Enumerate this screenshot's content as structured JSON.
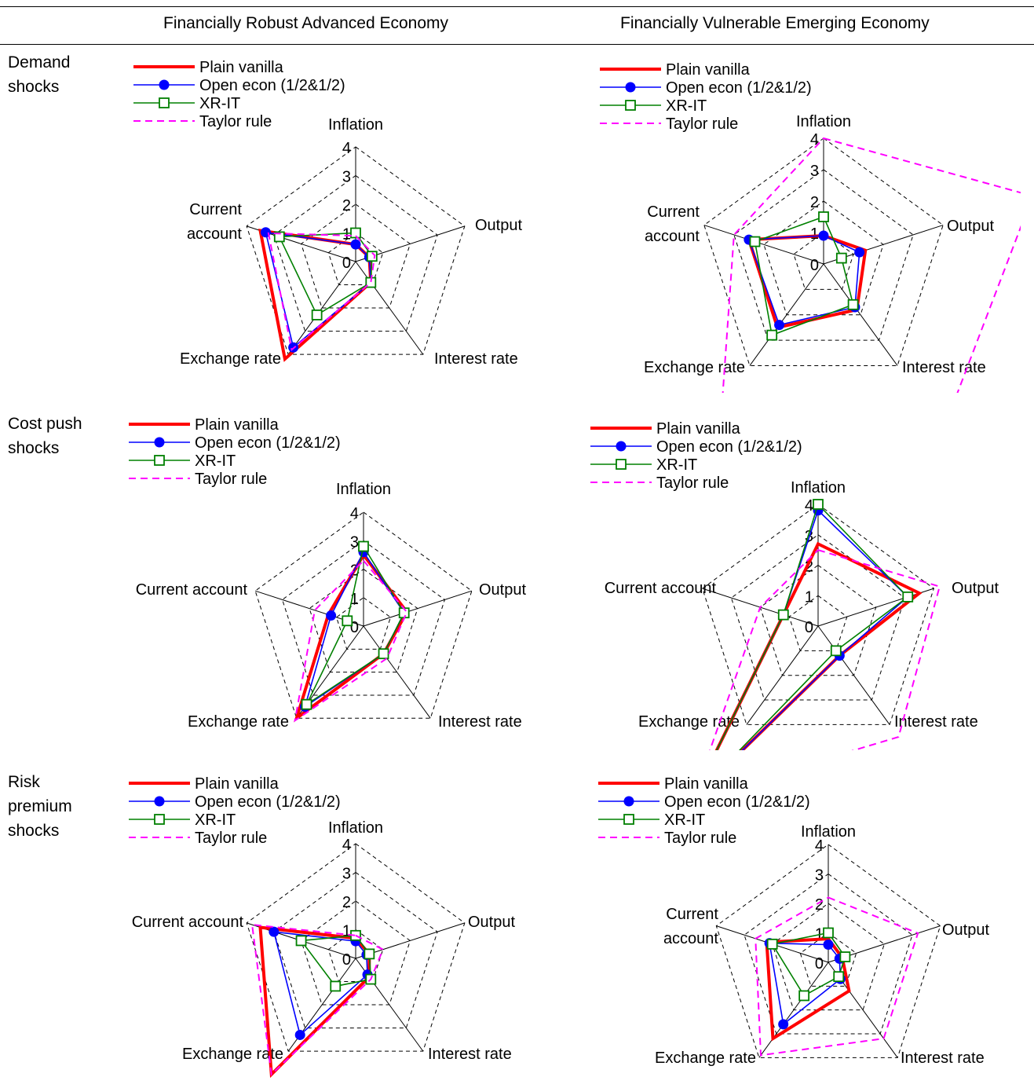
{
  "header": {
    "col1": "Financially Robust Advanced Economy",
    "col2": "Financially Vulnerable Emerging Economy"
  },
  "rows": [
    {
      "label_lines": [
        "Demand",
        "shocks"
      ]
    },
    {
      "label_lines": [
        "Cost push",
        "shocks"
      ]
    },
    {
      "label_lines": [
        "Risk",
        "premium",
        "shocks"
      ]
    }
  ],
  "colors": {
    "plain_vanilla": "#ff0000",
    "open_econ": "#0000ff",
    "xr_it": "#008000",
    "taylor_rule": "#ff00ff"
  },
  "chart_data": [
    {
      "type": "radar",
      "panel": "Demand shocks - Financially Robust Advanced Economy",
      "axes": [
        "Inflation",
        "Output",
        "Interest rate",
        "Exchange rate",
        "Current account"
      ],
      "axis_label_lines": [
        [
          "Inflation"
        ],
        [
          "Output"
        ],
        [
          "Interest rate"
        ],
        [
          "Exchange rate"
        ],
        [
          "Current",
          "account"
        ]
      ],
      "rlim": [
        0,
        4
      ],
      "ticks": [
        "0",
        "1",
        "2",
        "3",
        "4"
      ],
      "legend": "top-left",
      "series": [
        {
          "name": "Plain vanilla",
          "values": [
            0.6,
            0.5,
            0.9,
            4.2,
            3.5
          ]
        },
        {
          "name": "Open econ (1/2&1/2)",
          "values": [
            0.6,
            0.5,
            0.9,
            3.7,
            3.3
          ]
        },
        {
          "name": "XR-IT",
          "values": [
            1.0,
            0.6,
            0.9,
            2.3,
            2.8
          ]
        },
        {
          "name": "Taylor rule",
          "values": [
            0.9,
            0.7,
            0.9,
            3.8,
            3.2
          ]
        }
      ]
    },
    {
      "type": "radar",
      "panel": "Demand shocks - Financially Vulnerable Emerging Economy",
      "axes": [
        "Inflation",
        "Output",
        "Interest rate",
        "Exchange rate",
        "Current account"
      ],
      "axis_label_lines": [
        [
          "Inflation"
        ],
        [
          "Output"
        ],
        [
          "Interest rate"
        ],
        [
          "Exchange rate"
        ],
        [
          "Current",
          "account"
        ]
      ],
      "rlim": [
        0,
        4
      ],
      "ticks": [
        "0",
        "1",
        "2",
        "3",
        "4"
      ],
      "legend": "top-left",
      "series": [
        {
          "name": "Plain vanilla",
          "values": [
            0.9,
            1.4,
            1.8,
            2.5,
            2.5
          ]
        },
        {
          "name": "Open econ (1/2&1/2)",
          "values": [
            0.9,
            1.2,
            1.7,
            2.4,
            2.5
          ]
        },
        {
          "name": "XR-IT",
          "values": [
            1.5,
            0.6,
            1.6,
            2.8,
            2.3
          ]
        },
        {
          "name": "Taylor rule",
          "values": [
            4.0,
            7.0,
            6.5,
            5.5,
            3.0
          ]
        }
      ]
    },
    {
      "type": "radar",
      "panel": "Cost push shocks - Financially Robust Advanced Economy",
      "axes": [
        "Inflation",
        "Output",
        "Interest rate",
        "Exchange rate",
        "Current account"
      ],
      "axis_label_lines": [
        [
          "Inflation"
        ],
        [
          "Output"
        ],
        [
          "Interest rate"
        ],
        [
          "Exchange rate"
        ],
        [
          "Current account"
        ]
      ],
      "rlim": [
        0,
        4
      ],
      "ticks": [
        "0",
        "1",
        "2",
        "3",
        "4"
      ],
      "legend": "top-left",
      "series": [
        {
          "name": "Plain vanilla",
          "values": [
            2.5,
            1.6,
            1.2,
            4.0,
            1.3
          ]
        },
        {
          "name": "Open econ (1/2&1/2)",
          "values": [
            2.6,
            1.5,
            1.2,
            3.5,
            1.2
          ]
        },
        {
          "name": "XR-IT",
          "values": [
            2.8,
            1.5,
            1.2,
            3.4,
            0.6
          ]
        },
        {
          "name": "Taylor rule",
          "values": [
            2.3,
            1.6,
            1.4,
            4.1,
            1.8
          ]
        }
      ]
    },
    {
      "type": "radar",
      "panel": "Cost push shocks - Financially Vulnerable Emerging Economy",
      "axes": [
        "Inflation",
        "Output",
        "Interest rate",
        "Exchange rate",
        "Current account"
      ],
      "axis_label_lines": [
        [
          "Inflation"
        ],
        [
          "Output"
        ],
        [
          "Interest rate"
        ],
        [
          "Exchange rate"
        ],
        [
          "Current account"
        ]
      ],
      "rlim": [
        0,
        4
      ],
      "ticks": [
        "0",
        "1",
        "2",
        "3",
        "4"
      ],
      "legend": "top-left",
      "series": [
        {
          "name": "Plain vanilla",
          "values": [
            2.7,
            3.5,
            1.2,
            7.0,
            1.2
          ]
        },
        {
          "name": "Open econ (1/2&1/2)",
          "values": [
            3.8,
            3.1,
            1.2,
            7.0,
            1.2
          ]
        },
        {
          "name": "XR-IT",
          "values": [
            4.0,
            3.1,
            1.0,
            7.0,
            1.2
          ]
        },
        {
          "name": "Taylor rule",
          "values": [
            2.5,
            4.2,
            4.5,
            7.0,
            2.0
          ]
        }
      ]
    },
    {
      "type": "radar",
      "panel": "Risk premium shocks - Financially Robust Advanced Economy",
      "axes": [
        "Inflation",
        "Output",
        "Interest rate",
        "Exchange rate",
        "Current account"
      ],
      "axis_label_lines": [
        [
          "Inflation"
        ],
        [
          "Output"
        ],
        [
          "Interest rate"
        ],
        [
          "Exchange rate"
        ],
        [
          "Current account"
        ]
      ],
      "rlim": [
        0,
        4
      ],
      "ticks": [
        "0",
        "1",
        "2",
        "3",
        "4"
      ],
      "legend": "top-left",
      "series": [
        {
          "name": "Plain vanilla",
          "values": [
            0.7,
            0.5,
            0.8,
            5.0,
            3.5
          ]
        },
        {
          "name": "Open econ (1/2&1/2)",
          "values": [
            0.6,
            0.4,
            0.7,
            3.3,
            3.0
          ]
        },
        {
          "name": "XR-IT",
          "values": [
            0.8,
            0.5,
            0.9,
            1.2,
            2.0
          ]
        },
        {
          "name": "Taylor rule",
          "values": [
            0.8,
            1.0,
            0.9,
            5.0,
            3.8
          ]
        }
      ]
    },
    {
      "type": "radar",
      "panel": "Risk premium shocks - Financially Vulnerable Emerging Economy",
      "axes": [
        "Inflation",
        "Output",
        "Interest rate",
        "Exchange rate",
        "Current account"
      ],
      "axis_label_lines": [
        [
          "Inflation"
        ],
        [
          "Output"
        ],
        [
          "Interest rate"
        ],
        [
          "Exchange rate"
        ],
        [
          "Current",
          "account"
        ]
      ],
      "rlim": [
        0,
        4
      ],
      "ticks": [
        "0",
        "1",
        "2",
        "3",
        "4"
      ],
      "legend": "top-left",
      "series": [
        {
          "name": "Plain vanilla",
          "values": [
            0.8,
            0.5,
            1.2,
            3.2,
            2.2
          ]
        },
        {
          "name": "Open econ (1/2&1/2)",
          "values": [
            0.6,
            0.4,
            0.7,
            2.6,
            2.1
          ]
        },
        {
          "name": "XR-IT",
          "values": [
            1.0,
            0.6,
            0.6,
            1.4,
            2.0
          ]
        },
        {
          "name": "Taylor rule",
          "values": [
            2.2,
            3.2,
            3.2,
            3.9,
            2.6
          ]
        }
      ]
    }
  ]
}
